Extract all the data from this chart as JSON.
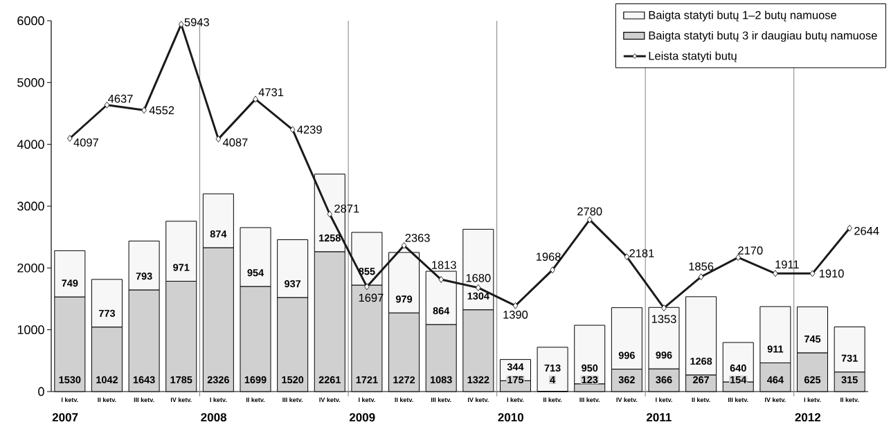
{
  "chart_data": {
    "type": "bar",
    "stacked": true,
    "data_labels": true,
    "legend": "top right",
    "marker": "diamond",
    "categories": [
      "I ketv.",
      "II ketv.",
      "III ketv.",
      "IV ketv.",
      "I ketv.",
      "II ketv.",
      "III ketv.",
      "IV ketv.",
      "I ketv.",
      "II ketv.",
      "III ketv.",
      "IV ketv.",
      "I ketv.",
      "II ketv.",
      "III ketv.",
      "IV ketv.",
      "I ketv.",
      "II ketv.",
      "III ketv.",
      "IV ketv.",
      "I ketv.",
      "II ketv."
    ],
    "series": [
      {
        "name": "Baigta statyti butų 3 ir daugiau butų namuose",
        "color": "#d0d0d0",
        "values": [
          1530,
          1042,
          1643,
          1785,
          2326,
          1699,
          1520,
          2261,
          1721,
          1272,
          1083,
          1322,
          175,
          4,
          123,
          362,
          366,
          267,
          154,
          464,
          625,
          315
        ]
      },
      {
        "name": "Baigta statyti butų 1–2 butų namuose",
        "color": "#f7f7f7",
        "values": [
          749,
          773,
          793,
          971,
          874,
          954,
          937,
          1258,
          855,
          979,
          864,
          1304,
          344,
          713,
          950,
          996,
          996,
          1268,
          640,
          911,
          745,
          731
        ]
      },
      {
        "name": "Leista statyti butų",
        "type": "line",
        "color": "#1a1a1a",
        "values": [
          4097,
          4637,
          4552,
          5943,
          4087,
          4731,
          4239,
          2871,
          1697,
          2363,
          1813,
          1680,
          1390,
          1968,
          2780,
          2181,
          1353,
          1856,
          2170,
          1911,
          1910,
          2644
        ]
      }
    ],
    "ylim": [
      0,
      6000
    ],
    "yticks": [
      0,
      1000,
      2000,
      3000,
      4000,
      5000,
      6000
    ],
    "annotations": [
      "2007",
      "2008",
      "2009",
      "2010",
      "2011",
      "2012"
    ]
  }
}
